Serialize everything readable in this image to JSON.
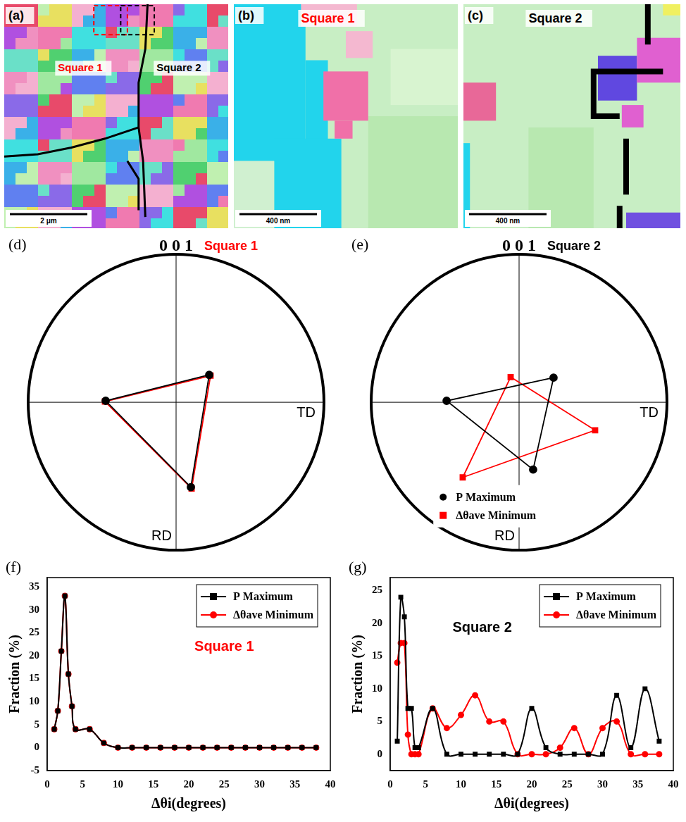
{
  "images": [
    {
      "panel": "(a)",
      "labels": [
        {
          "text": "Square 1",
          "color": "#ff0000"
        },
        {
          "text": "Square 2",
          "color": "#000000"
        }
      ],
      "scale_bar": "2 μm"
    },
    {
      "panel": "(b)",
      "title": {
        "text": "Square 1",
        "color": "#ff0000"
      },
      "scale_bar": "400 nm"
    },
    {
      "panel": "(c)",
      "title": {
        "text": "Square 2",
        "color": "#000000"
      },
      "scale_bar": "400 nm"
    }
  ],
  "chart_data": [
    {
      "panel": "(d)",
      "type": "scatter",
      "title": "0 0 1",
      "annotations": [
        {
          "text": "Square 1",
          "color": "#ff0000"
        }
      ],
      "xlabel": "TD",
      "ylabel": "RD",
      "xlim": [
        -1,
        1
      ],
      "ylim": [
        -1,
        1
      ],
      "tick_labels": false,
      "series": [
        {
          "name": "P Maximum",
          "color": "#000000",
          "marker": "circle",
          "line_style": "solid",
          "x": [
            0.224,
            -0.476,
            0.1
          ],
          "values": [
            0.186,
            0.01,
            -0.576
          ]
        },
        {
          "name": "Δθave Minimum",
          "color": "#ff0000",
          "marker": "square",
          "line_style": "solid",
          "x": [
            0.233,
            -0.481,
            0.105
          ],
          "values": [
            0.181,
            0.005,
            -0.586
          ]
        }
      ]
    },
    {
      "panel": "(e)",
      "type": "scatter",
      "title": "0 0 1",
      "annotations": [
        {
          "text": "Square 2",
          "color": "#000000"
        }
      ],
      "xlabel": "TD",
      "ylabel": "RD",
      "xlim": [
        -1,
        1
      ],
      "ylim": [
        -1,
        1
      ],
      "tick_labels": false,
      "legend": "lower left",
      "series": [
        {
          "name": "P Maximum",
          "color": "#000000",
          "marker": "circle",
          "line_style": "solid",
          "x": [
            0.233,
            -0.49,
            0.095
          ],
          "values": [
            0.167,
            0.01,
            -0.457
          ]
        },
        {
          "name": "Δθave Minimum",
          "color": "#ff0000",
          "marker": "square",
          "line_style": "solid",
          "x": [
            -0.057,
            0.514,
            -0.381
          ],
          "values": [
            0.171,
            -0.19,
            -0.51
          ]
        }
      ]
    },
    {
      "panel": "(f)",
      "type": "line",
      "annotations": [
        {
          "text": "Square 1",
          "color": "#ff0000"
        }
      ],
      "xlabel": "Δθi(degrees)",
      "ylabel": "Fraction (%)",
      "x": [
        1,
        1.5,
        2,
        2.5,
        3,
        3.5,
        4,
        6,
        8,
        10,
        12,
        14,
        16,
        18,
        20,
        22,
        24,
        26,
        28,
        30,
        32,
        34,
        36,
        38
      ],
      "xlim": [
        0,
        40
      ],
      "xticks": [
        0,
        5,
        10,
        15,
        20,
        25,
        30,
        35,
        40
      ],
      "ylim": [
        -5,
        37
      ],
      "yticks": [
        -5,
        0,
        5,
        10,
        15,
        20,
        25,
        30,
        35
      ],
      "legend": "upper right",
      "series": [
        {
          "name": "P Maximum",
          "color": "#000000",
          "marker": "square",
          "line_style": "solid",
          "values": [
            4,
            8,
            21,
            33,
            16,
            9,
            4,
            4,
            1,
            0,
            0,
            0,
            0,
            0,
            0,
            0,
            0,
            0,
            0,
            0,
            0,
            0,
            0,
            0
          ]
        },
        {
          "name": "Δθave Minimum",
          "color": "#ff0000",
          "marker": "circle",
          "line_style": "solid",
          "values": [
            4,
            8,
            21,
            33,
            16,
            9,
            4,
            4,
            1,
            0,
            0,
            0,
            0,
            0,
            0,
            0,
            0,
            0,
            0,
            0,
            0,
            0,
            0,
            0
          ]
        }
      ]
    },
    {
      "panel": "(g)",
      "type": "line",
      "annotations": [
        {
          "text": "Square 2",
          "color": "#000000"
        }
      ],
      "xlabel": "Δθi(degrees)",
      "ylabel": "Fraction (%)",
      "x": [
        1,
        1.5,
        2,
        2.5,
        3,
        3.5,
        4,
        6,
        8,
        10,
        12,
        14,
        16,
        18,
        20,
        22,
        24,
        26,
        28,
        30,
        32,
        34,
        36,
        38
      ],
      "xlim": [
        0,
        40
      ],
      "xticks": [
        0,
        5,
        10,
        15,
        20,
        25,
        30,
        35,
        40
      ],
      "ylim": [
        -2.5,
        27
      ],
      "yticks": [
        0,
        5,
        10,
        15,
        20,
        25
      ],
      "legend": "upper right",
      "series": [
        {
          "name": "P Maximum",
          "color": "#000000",
          "marker": "square",
          "line_style": "solid",
          "values": [
            2,
            24,
            21,
            7,
            7,
            1,
            1,
            7,
            0,
            0,
            0,
            0,
            0,
            0,
            7,
            1,
            0,
            0,
            0,
            0,
            9,
            1,
            10,
            2
          ]
        },
        {
          "name": "Δθave Minimum",
          "color": "#ff0000",
          "marker": "circle",
          "line_style": "solid",
          "values": [
            14,
            17,
            17,
            3,
            0,
            0,
            0,
            7,
            4,
            6,
            9,
            5,
            5,
            0,
            0,
            0,
            1,
            4,
            0,
            4,
            5,
            0,
            0,
            0
          ]
        }
      ]
    }
  ]
}
